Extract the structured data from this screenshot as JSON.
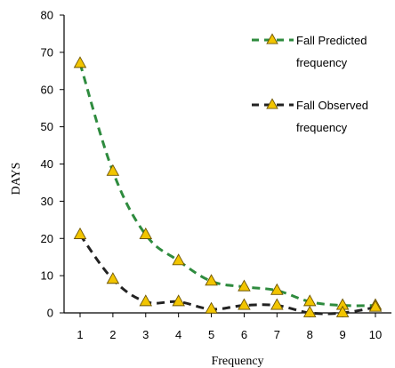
{
  "chart_data": {
    "type": "line",
    "title": "",
    "xlabel": "Frequency",
    "ylabel": "DAYS",
    "x": [
      1,
      2,
      3,
      4,
      5,
      6,
      7,
      8,
      9,
      10
    ],
    "xlim": [
      1,
      10
    ],
    "ylim": [
      0,
      80
    ],
    "yticks": [
      0,
      10,
      20,
      30,
      40,
      50,
      60,
      70,
      80
    ],
    "grid": false,
    "legend_position": "top-right",
    "series": [
      {
        "name_lines": [
          "Fall Predicted",
          "frequency"
        ],
        "color": "#2e8b3e",
        "marker_color": "#f2c500",
        "line_style": "dashed",
        "values": [
          67,
          38,
          21,
          14,
          8.5,
          7,
          6,
          3,
          2,
          2
        ]
      },
      {
        "name_lines": [
          "Fall Observed",
          "frequency"
        ],
        "color": "#222222",
        "marker_color": "#f2c500",
        "line_style": "dashed",
        "values": [
          21,
          9,
          3,
          3,
          1,
          2,
          2,
          0,
          0,
          1.5
        ]
      }
    ]
  }
}
